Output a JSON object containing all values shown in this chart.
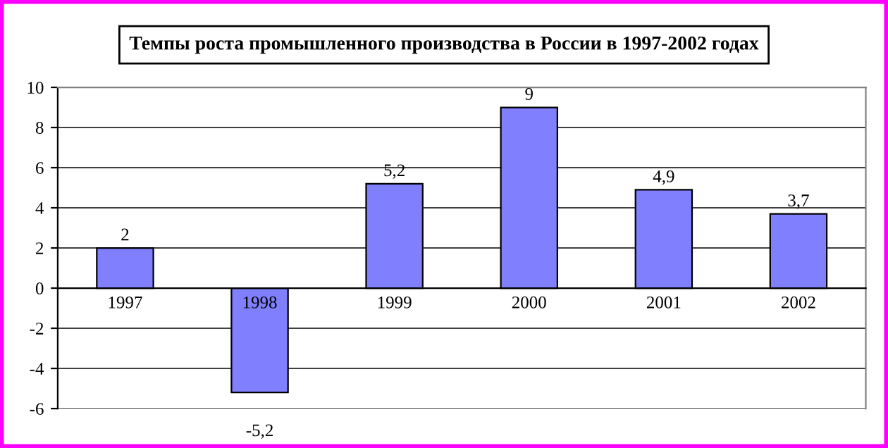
{
  "chart_data": {
    "type": "bar",
    "title": "Темпы роста промышленного производства в России в 1997-2002 годах",
    "categories": [
      "1997",
      "1998",
      "1999",
      "2000",
      "2001",
      "2002"
    ],
    "values": [
      2,
      -5.2,
      5.2,
      9,
      4.9,
      3.7
    ],
    "value_labels": [
      "2",
      "-5,2",
      "5,2",
      "9",
      "4,9",
      "3,7"
    ],
    "color": "#8080ff",
    "ylim": [
      -6,
      10
    ],
    "yticks": [
      -6,
      -4,
      -2,
      0,
      2,
      4,
      6,
      8,
      10
    ],
    "grid": "y"
  }
}
